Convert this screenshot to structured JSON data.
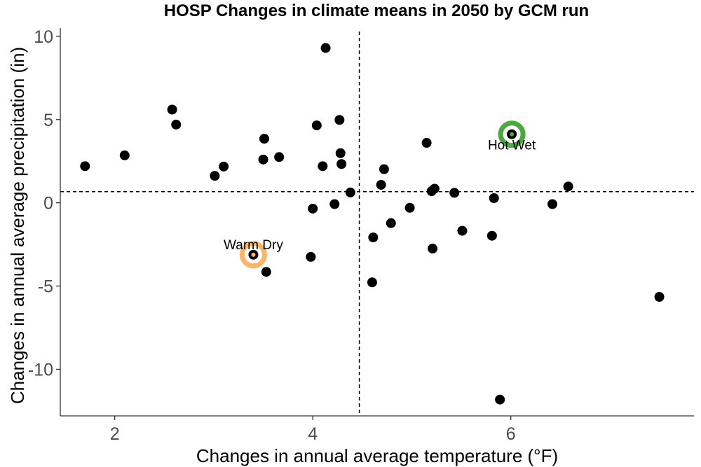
{
  "chart_data": {
    "type": "scatter",
    "title": "HOSP Changes in climate means in 2050 by GCM run",
    "xlabel": "Changes in annual average temperature (°F)",
    "ylabel": "Changes in annual average precipitation (in)",
    "xlim": [
      1.45,
      7.85
    ],
    "ylim": [
      -12.8,
      10.5
    ],
    "x_ticks": [
      2,
      4,
      6
    ],
    "y_ticks": [
      10,
      5,
      0,
      -5,
      -10
    ],
    "x_tick_labels": [
      "2",
      "4",
      "6"
    ],
    "y_tick_labels": [
      "10",
      "5",
      "0",
      "-5",
      "-10"
    ],
    "grid": false,
    "reference_lines": {
      "x": 4.47,
      "y": 0.67
    },
    "points": [
      {
        "x": 1.7,
        "y": 2.2
      },
      {
        "x": 2.1,
        "y": 2.85
      },
      {
        "x": 2.58,
        "y": 5.6
      },
      {
        "x": 2.62,
        "y": 4.7
      },
      {
        "x": 3.01,
        "y": 1.62
      },
      {
        "x": 3.1,
        "y": 2.18
      },
      {
        "x": 3.4,
        "y": -3.12
      },
      {
        "x": 3.5,
        "y": 2.6
      },
      {
        "x": 3.51,
        "y": 3.85
      },
      {
        "x": 3.53,
        "y": -4.15
      },
      {
        "x": 3.66,
        "y": 2.75
      },
      {
        "x": 3.98,
        "y": -3.25
      },
      {
        "x": 4.0,
        "y": -0.35
      },
      {
        "x": 4.04,
        "y": 4.65
      },
      {
        "x": 4.1,
        "y": 2.2
      },
      {
        "x": 4.13,
        "y": 9.3
      },
      {
        "x": 4.22,
        "y": -0.08
      },
      {
        "x": 4.27,
        "y": 4.98
      },
      {
        "x": 4.28,
        "y": 2.98
      },
      {
        "x": 4.29,
        "y": 2.33
      },
      {
        "x": 4.38,
        "y": 0.62
      },
      {
        "x": 4.6,
        "y": -4.78
      },
      {
        "x": 4.61,
        "y": -2.08
      },
      {
        "x": 4.69,
        "y": 1.08
      },
      {
        "x": 4.72,
        "y": 2.02
      },
      {
        "x": 4.79,
        "y": -1.22
      },
      {
        "x": 4.98,
        "y": -0.3
      },
      {
        "x": 5.15,
        "y": 3.6
      },
      {
        "x": 5.2,
        "y": 0.7
      },
      {
        "x": 5.21,
        "y": -2.75
      },
      {
        "x": 5.23,
        "y": 0.85
      },
      {
        "x": 5.43,
        "y": 0.6
      },
      {
        "x": 5.51,
        "y": -1.68
      },
      {
        "x": 5.81,
        "y": -1.98
      },
      {
        "x": 5.83,
        "y": 0.28
      },
      {
        "x": 5.89,
        "y": -11.82
      },
      {
        "x": 6.01,
        "y": 4.12
      },
      {
        "x": 6.42,
        "y": -0.08
      },
      {
        "x": 6.58,
        "y": 0.98
      },
      {
        "x": 7.5,
        "y": -5.65
      }
    ],
    "highlights": [
      {
        "label": "Warm Dry",
        "x": 3.4,
        "y": -3.12,
        "color": "#fdb56a",
        "label_position": "above"
      },
      {
        "label": "Hot Wet",
        "x": 6.01,
        "y": 4.12,
        "color": "#4aa83e",
        "label_position": "below"
      }
    ],
    "colors": {
      "point": "#000000",
      "axis": "#333333",
      "tick_label": "#4d4d4d"
    }
  }
}
